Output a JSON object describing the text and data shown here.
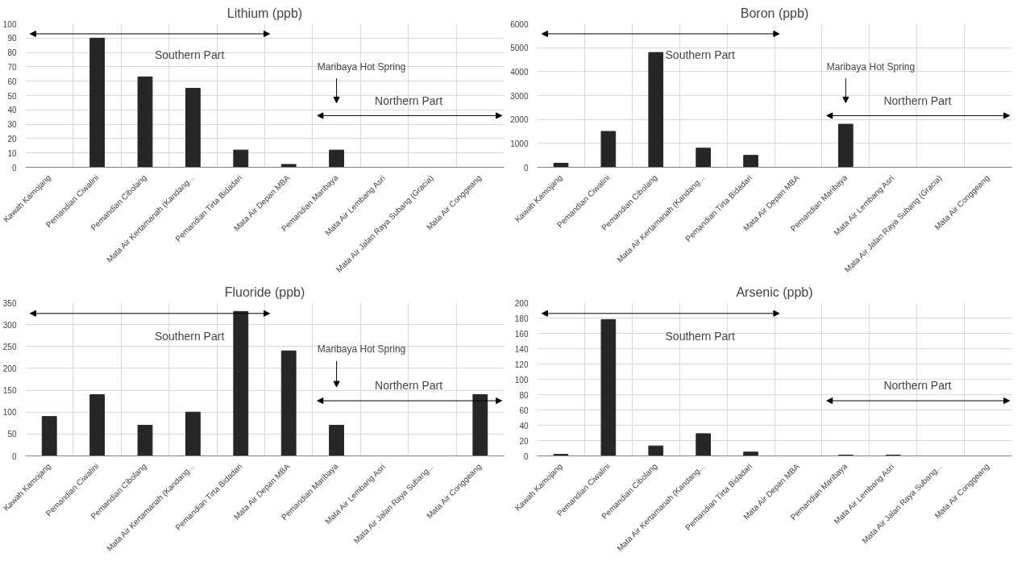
{
  "chart_data": [
    {
      "type": "bar",
      "title": "Lithium (ppb)",
      "categories": [
        "Kawah Kamojang",
        "Pemandian Ciwalini",
        "Pemandian Cibolang",
        "Mata Air Kertamanah (Kandang...",
        "Pemandian Tirta Bidadari",
        "Mata Air Depan MBA",
        "Pemandian Maribaya",
        "Mata Air Lembang Asri",
        "Mata Air Jalan Raya Subang (Gracia)",
        "Mata Air Conggeang"
      ],
      "values": [
        null,
        90,
        63,
        55,
        12,
        2,
        12,
        null,
        null,
        null
      ],
      "color": "#262626",
      "ylim": [
        0,
        100
      ],
      "yticks": [
        0,
        10,
        20,
        30,
        40,
        50,
        60,
        70,
        80,
        90,
        100
      ],
      "grid": true,
      "annotations": [
        "Southern Part",
        "Northern Part",
        "Maribaya Hot Spring"
      ]
    },
    {
      "type": "bar",
      "title": "Boron (ppb)",
      "categories": [
        "Kawah Kamojang",
        "Pemandian Ciwalini",
        "Pemandian Cibolang",
        "Mata Air Kertamanah (Kandang...",
        "Pemandian Tirta Bidadari",
        "Mata Air Depan MBA",
        "Pemandian Maribaya",
        "Mata Air Lembang Asri",
        "Mata Air Jalan Raya Subang (Gracia)",
        "Mata Air Conggeang"
      ],
      "values": [
        170,
        1500,
        4800,
        800,
        500,
        null,
        1800,
        null,
        null,
        null
      ],
      "color": "#262626",
      "ylim": [
        0,
        6000
      ],
      "yticks": [
        0,
        1000,
        2000,
        3000,
        4000,
        5000,
        6000
      ],
      "grid": true,
      "annotations": [
        "Southern Part",
        "Northern Part",
        "Maribaya Hot Spring"
      ]
    },
    {
      "type": "bar",
      "title": "Fluoride (ppb)",
      "categories": [
        "Kawah Kamojang",
        "Pemandian Ciwalini",
        "Pemandian Cibolang",
        "Mata Air Kertamanah (Kandang...",
        "Pemandian Tirta Bidadari",
        "Mata Air Depan MBA",
        "Pemandian Maribaya",
        "Mata Air Lembang Asri",
        "Mata Air Jalan Raya Subang...",
        "Mata Air Conggeang"
      ],
      "values": [
        90,
        140,
        70,
        100,
        330,
        240,
        70,
        null,
        null,
        140
      ],
      "color": "#262626",
      "ylim": [
        0,
        350
      ],
      "yticks": [
        0,
        50,
        100,
        150,
        200,
        250,
        300,
        350
      ],
      "grid": true,
      "annotations": [
        "Southern Part",
        "Northern Part",
        "Maribaya Hot Spring"
      ]
    },
    {
      "type": "bar",
      "title": "Arsenic (ppb)",
      "categories": [
        "Kawah Kamojang",
        "Pemandian Ciwalini",
        "Pemandian Cibolang",
        "Mata Air Kertamanah (Kandang...",
        "Pemandian Tirta Bidadari",
        "Mata Air Depan MBA",
        "Pemandian Maribaya",
        "Mata Air Lembang Asri",
        "Mata Air Jalan Raya Subang...",
        "Mata Air Conggeang"
      ],
      "values": [
        2,
        178,
        13,
        29,
        5,
        null,
        1,
        1,
        null,
        null
      ],
      "color": "#262626",
      "ylim": [
        0,
        200
      ],
      "yticks": [
        0,
        20,
        40,
        60,
        80,
        100,
        120,
        140,
        160,
        180,
        200
      ],
      "grid": true,
      "annotations": [
        "Southern Part",
        "Northern Part"
      ]
    }
  ]
}
